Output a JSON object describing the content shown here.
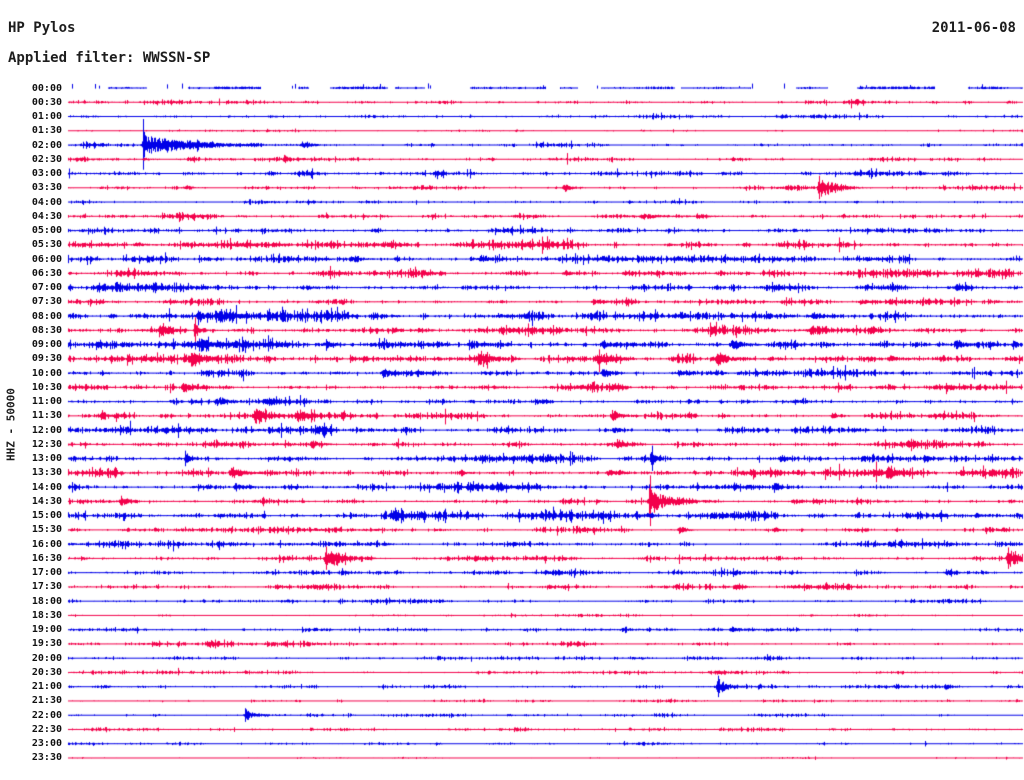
{
  "header": {
    "station": "HP Pylos",
    "filter_label": "Applied filter: WWSSN-SP",
    "date": "2011-06-08"
  },
  "left_axis": {
    "label": "HHZ - 50000"
  },
  "chart_data": {
    "type": "helicorder",
    "title": "HP Pylos",
    "date": "2011-06-08",
    "channel": "HHZ",
    "scale": "50000",
    "filter": "WWSSN-SP",
    "minutes_per_row": 30,
    "legend_position": "none",
    "grid": false,
    "palette": {
      "blue": "#0000e8",
      "red": "#f3004b"
    },
    "rows": [
      {
        "t": "00:00",
        "c": "blue",
        "a": 1.1,
        "style": "gaps",
        "e": []
      },
      {
        "t": "00:30",
        "c": "red",
        "a": 1.3,
        "e": [
          {
            "p": 0.825,
            "a": 3,
            "d": 6
          }
        ]
      },
      {
        "t": "01:00",
        "c": "blue",
        "a": 0.9,
        "e": [
          {
            "p": 0.21,
            "a": 2,
            "d": 5
          }
        ]
      },
      {
        "t": "01:30",
        "c": "red",
        "a": 0.55,
        "e": [
          {
            "p": 0.6,
            "a": 1.5,
            "d": 4
          }
        ]
      },
      {
        "t": "02:00",
        "c": "blue",
        "a": 1.0,
        "e": [
          {
            "p": 0.079,
            "a": 9,
            "d": 45,
            "s": 26
          },
          {
            "p": 0.245,
            "a": 3.5,
            "d": 10
          }
        ]
      },
      {
        "t": "02:30",
        "c": "red",
        "a": 1.2,
        "e": [
          {
            "p": 0.079,
            "a": 2,
            "d": 8
          }
        ]
      },
      {
        "t": "03:00",
        "c": "blue",
        "a": 1.6,
        "e": []
      },
      {
        "t": "03:30",
        "c": "red",
        "a": 1.1,
        "e": [
          {
            "p": 0.123,
            "a": 4,
            "d": 5
          },
          {
            "p": 0.52,
            "a": 4.5,
            "d": 7
          },
          {
            "p": 0.787,
            "a": 10,
            "d": 16,
            "s": 12
          }
        ]
      },
      {
        "t": "04:00",
        "c": "blue",
        "a": 0.9,
        "e": [
          {
            "p": 0.825,
            "a": 2.5,
            "d": 4
          }
        ]
      },
      {
        "t": "04:30",
        "c": "red",
        "a": 1.4,
        "e": [
          {
            "p": 0.6,
            "a": 2.8,
            "d": 22
          },
          {
            "p": 0.66,
            "a": 2.5,
            "d": 10
          }
        ]
      },
      {
        "t": "05:00",
        "c": "blue",
        "a": 1.9,
        "e": []
      },
      {
        "t": "05:30",
        "c": "red",
        "a": 1.9,
        "e": [
          {
            "p": 0.07,
            "a": 3,
            "d": 10
          },
          {
            "p": 0.33,
            "a": 2.5,
            "d": 8
          }
        ]
      },
      {
        "t": "06:00",
        "c": "blue",
        "a": 1.6,
        "e": [
          {
            "p": 0.3,
            "a": 2.8,
            "d": 12
          }
        ]
      },
      {
        "t": "06:30",
        "c": "red",
        "a": 1.9,
        "e": [
          {
            "p": 0.05,
            "a": 3,
            "d": 8
          },
          {
            "p": 0.52,
            "a": 3,
            "d": 10
          }
        ]
      },
      {
        "t": "07:00",
        "c": "blue",
        "a": 1.8,
        "e": [
          {
            "p": 0.03,
            "a": 3,
            "d": 18
          },
          {
            "p": 0.25,
            "a": 2.5,
            "d": 8
          },
          {
            "p": 0.93,
            "a": 2.5,
            "d": 10
          }
        ]
      },
      {
        "t": "07:30",
        "c": "red",
        "a": 1.6,
        "e": [
          {
            "p": 0.55,
            "a": 3,
            "d": 10
          },
          {
            "p": 0.83,
            "a": 2.5,
            "d": 8
          }
        ]
      },
      {
        "t": "08:00",
        "c": "blue",
        "a": 2.2,
        "e": [
          {
            "p": 0.155,
            "a": 5,
            "d": 12
          },
          {
            "p": 0.45,
            "a": 3,
            "d": 10
          },
          {
            "p": 0.78,
            "a": 4,
            "d": 14
          }
        ]
      },
      {
        "t": "08:30",
        "c": "red",
        "a": 2.0,
        "e": [
          {
            "p": 0.096,
            "a": 5,
            "d": 8
          },
          {
            "p": 0.133,
            "a": 5,
            "d": 4,
            "s": 13
          },
          {
            "p": 0.34,
            "a": 3,
            "d": 8
          },
          {
            "p": 0.778,
            "a": 5,
            "d": 8
          },
          {
            "p": 0.84,
            "a": 3,
            "d": 6
          }
        ]
      },
      {
        "t": "09:00",
        "c": "blue",
        "a": 2.4,
        "e": [
          {
            "p": 0.14,
            "a": 4,
            "d": 10
          },
          {
            "p": 0.27,
            "a": 4,
            "d": 8
          },
          {
            "p": 0.42,
            "a": 5,
            "d": 12
          },
          {
            "p": 0.56,
            "a": 4,
            "d": 10
          },
          {
            "p": 0.695,
            "a": 6,
            "d": 12
          },
          {
            "p": 0.93,
            "a": 5,
            "d": 10
          },
          {
            "p": 0.99,
            "a": 5,
            "d": 6
          }
        ]
      },
      {
        "t": "09:30",
        "c": "red",
        "a": 2.4,
        "e": [
          {
            "p": 0.13,
            "a": 6,
            "d": 10
          },
          {
            "p": 0.43,
            "a": 5,
            "d": 10
          },
          {
            "p": 0.555,
            "a": 6,
            "d": 12
          },
          {
            "p": 0.68,
            "a": 7,
            "d": 12
          },
          {
            "p": 0.86,
            "a": 4,
            "d": 8
          }
        ]
      },
      {
        "t": "10:00",
        "c": "blue",
        "a": 2.0,
        "e": [
          {
            "p": 0.33,
            "a": 5,
            "d": 10
          },
          {
            "p": 0.56,
            "a": 4,
            "d": 10
          },
          {
            "p": 0.64,
            "a": 3.5,
            "d": 8
          }
        ]
      },
      {
        "t": "10:30",
        "c": "red",
        "a": 2.0,
        "e": [
          {
            "p": 0.12,
            "a": 4,
            "d": 12
          },
          {
            "p": 0.57,
            "a": 3,
            "d": 8
          },
          {
            "p": 0.92,
            "a": 4,
            "d": 8
          }
        ]
      },
      {
        "t": "11:00",
        "c": "blue",
        "a": 1.8,
        "e": [
          {
            "p": 0.155,
            "a": 5,
            "d": 10
          },
          {
            "p": 0.21,
            "a": 4,
            "d": 8
          },
          {
            "p": 0.49,
            "a": 3,
            "d": 8
          }
        ]
      },
      {
        "t": "11:30",
        "c": "red",
        "a": 1.8,
        "e": [
          {
            "p": 0.195,
            "a": 7,
            "d": 10
          },
          {
            "p": 0.24,
            "a": 5,
            "d": 8
          },
          {
            "p": 0.57,
            "a": 5,
            "d": 10
          },
          {
            "p": 0.8,
            "a": 3,
            "d": 8
          }
        ]
      },
      {
        "t": "12:00",
        "c": "blue",
        "a": 1.7,
        "e": [
          {
            "p": 0.26,
            "a": 3,
            "d": 10
          },
          {
            "p": 0.57,
            "a": 3,
            "d": 8
          }
        ]
      },
      {
        "t": "12:30",
        "c": "red",
        "a": 1.7,
        "e": [
          {
            "p": 0.255,
            "a": 4,
            "d": 10
          },
          {
            "p": 0.575,
            "a": 5,
            "d": 10
          },
          {
            "p": 0.88,
            "a": 3,
            "d": 8
          }
        ]
      },
      {
        "t": "13:00",
        "c": "blue",
        "a": 1.7,
        "e": [
          {
            "p": 0.123,
            "a": 6,
            "d": 5,
            "s": 8
          },
          {
            "p": 0.612,
            "a": 6,
            "d": 4,
            "s": 13
          },
          {
            "p": 0.747,
            "a": 3.5,
            "d": 6
          },
          {
            "p": 0.9,
            "a": 3,
            "d": 6
          }
        ]
      },
      {
        "t": "13:30",
        "c": "red",
        "a": 1.8,
        "e": [
          {
            "p": 0.17,
            "a": 8,
            "d": 12
          },
          {
            "p": 0.41,
            "a": 3,
            "d": 8
          },
          {
            "p": 0.565,
            "a": 4,
            "d": 8
          },
          {
            "p": 0.86,
            "a": 5,
            "d": 8
          }
        ]
      },
      {
        "t": "14:00",
        "c": "blue",
        "a": 1.8,
        "e": [
          {
            "p": 0.175,
            "a": 4,
            "d": 8
          },
          {
            "p": 0.45,
            "a": 5,
            "d": 10
          },
          {
            "p": 0.74,
            "a": 3,
            "d": 8
          }
        ]
      },
      {
        "t": "14:30",
        "c": "red",
        "a": 1.6,
        "e": [
          {
            "p": 0.055,
            "a": 4,
            "d": 8
          },
          {
            "p": 0.61,
            "a": 13,
            "d": 20,
            "s": 26
          },
          {
            "p": 0.76,
            "a": 3,
            "d": 8
          }
        ]
      },
      {
        "t": "15:00",
        "c": "blue",
        "a": 2.2,
        "e": [
          {
            "p": 0.34,
            "a": 5,
            "d": 10
          },
          {
            "p": 0.61,
            "a": 3,
            "d": 5
          },
          {
            "p": 0.95,
            "a": 3,
            "d": 8
          }
        ]
      },
      {
        "t": "15:30",
        "c": "red",
        "a": 1.3,
        "e": [
          {
            "p": 0.64,
            "a": 4,
            "d": 8
          },
          {
            "p": 0.74,
            "a": 2.5,
            "d": 6
          }
        ]
      },
      {
        "t": "16:00",
        "c": "blue",
        "a": 1.3,
        "e": [
          {
            "p": 0.33,
            "a": 2,
            "d": 6
          }
        ]
      },
      {
        "t": "16:30",
        "c": "red",
        "a": 1.3,
        "e": [
          {
            "p": 0.27,
            "a": 10,
            "d": 16,
            "s": 12
          },
          {
            "p": 0.985,
            "a": 10,
            "d": 12,
            "s": 11
          }
        ]
      },
      {
        "t": "17:00",
        "c": "blue",
        "a": 1.5,
        "e": [
          {
            "p": 0.5,
            "a": 2,
            "d": 6
          },
          {
            "p": 0.92,
            "a": 3,
            "d": 6
          }
        ]
      },
      {
        "t": "17:30",
        "c": "red",
        "a": 1.3,
        "e": [
          {
            "p": 0.7,
            "a": 2.5,
            "d": 6
          }
        ]
      },
      {
        "t": "18:00",
        "c": "blue",
        "a": 1.1,
        "e": []
      },
      {
        "t": "18:30",
        "c": "red",
        "a": 0.6,
        "e": []
      },
      {
        "t": "19:00",
        "c": "blue",
        "a": 0.9,
        "e": [
          {
            "p": 0.695,
            "a": 3.5,
            "d": 8
          }
        ]
      },
      {
        "t": "19:30",
        "c": "red",
        "a": 1.0,
        "e": [
          {
            "p": 0.09,
            "a": 2,
            "d": 4
          },
          {
            "p": 0.148,
            "a": 4,
            "d": 6
          }
        ]
      },
      {
        "t": "20:00",
        "c": "blue",
        "a": 1.0,
        "e": []
      },
      {
        "t": "20:30",
        "c": "red",
        "a": 0.7,
        "e": [
          {
            "p": 0.68,
            "a": 1.5,
            "d": 4
          }
        ]
      },
      {
        "t": "21:00",
        "c": "blue",
        "a": 1.0,
        "e": [
          {
            "p": 0.681,
            "a": 8,
            "d": 9,
            "s": 11
          },
          {
            "p": 0.92,
            "a": 2.5,
            "d": 6
          }
        ]
      },
      {
        "t": "21:30",
        "c": "red",
        "a": 0.7,
        "e": []
      },
      {
        "t": "22:00",
        "c": "blue",
        "a": 0.8,
        "e": [
          {
            "p": 0.186,
            "a": 6,
            "d": 8,
            "s": 7
          }
        ]
      },
      {
        "t": "22:30",
        "c": "red",
        "a": 0.9,
        "e": [
          {
            "p": 0.8,
            "a": 1.5,
            "d": 4
          }
        ]
      },
      {
        "t": "23:00",
        "c": "blue",
        "a": 0.9,
        "e": [
          {
            "p": 0.385,
            "a": 2,
            "d": 5
          }
        ]
      },
      {
        "t": "23:30",
        "c": "red",
        "a": 0.35,
        "e": []
      }
    ]
  }
}
